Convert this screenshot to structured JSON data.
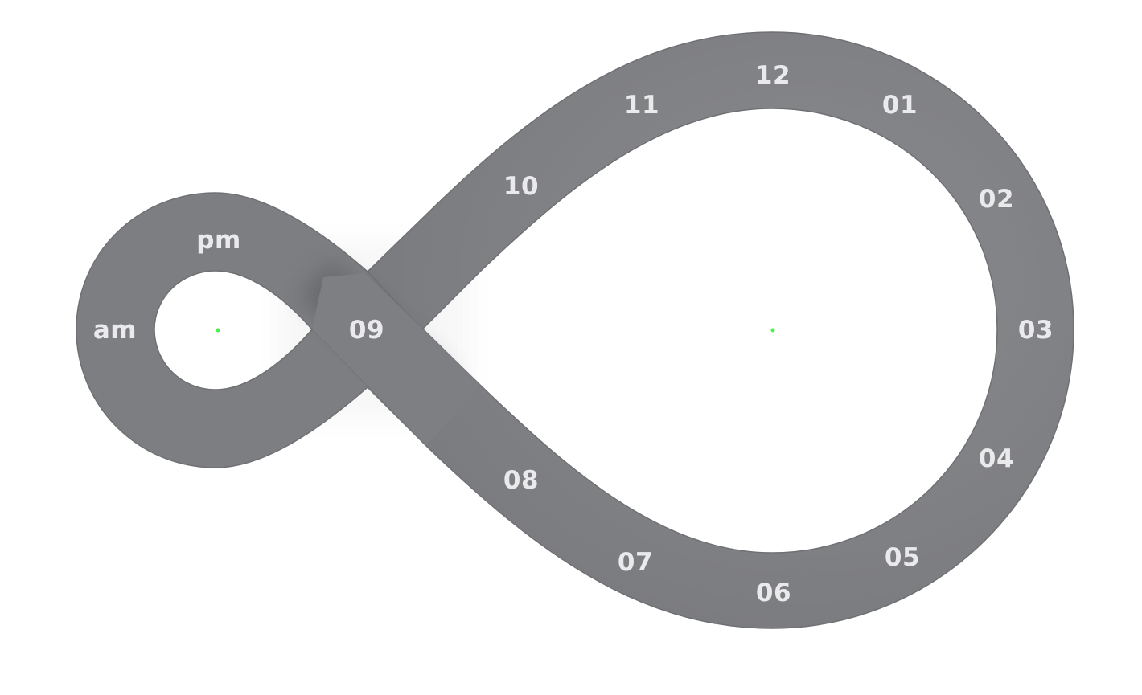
{
  "colors": {
    "band": "#7c7d80",
    "band_edge": "#6d6e71",
    "label": "#eaeaec",
    "background": "#ffffff",
    "center_dot": "#4cf04c"
  },
  "period_labels": {
    "am": "am",
    "pm": "pm"
  },
  "hour_labels": {
    "h12": "12",
    "h01": "01",
    "h02": "02",
    "h03": "03",
    "h04": "04",
    "h05": "05",
    "h06": "06",
    "h07": "07",
    "h08": "08",
    "h09": "09",
    "h10": "10",
    "h11": "11"
  }
}
